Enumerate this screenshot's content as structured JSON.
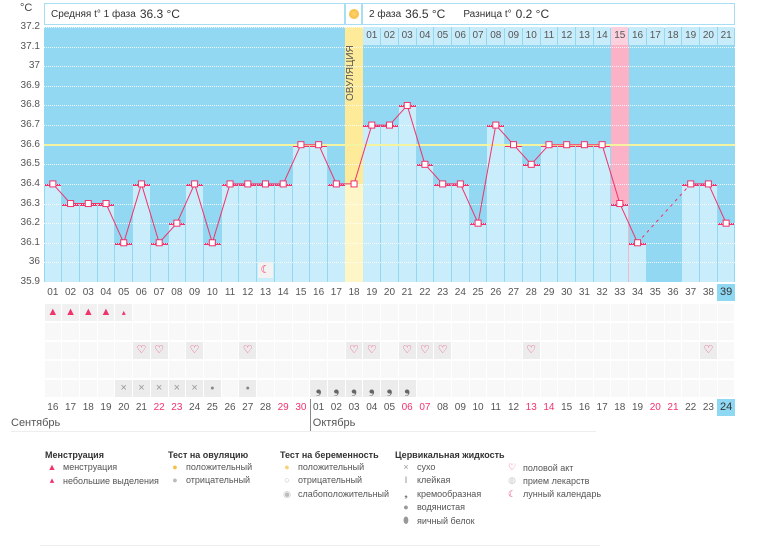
{
  "header": {
    "unit_label": "°C",
    "phase1_label": "Средняя t° 1 фаза",
    "phase1_value": "36.3 °C",
    "phase2_label": "2 фаза",
    "phase2_value": "36.5 °C",
    "diff_label": "Разница t°",
    "diff_value": "0.2 °C",
    "ovulation_label": "ОВУЛЯЦИЯ"
  },
  "colors": {
    "bg_dark": "#92d8f2",
    "bar_light": "#caedfb",
    "line": "#f0336b",
    "ovulation": "#fdeb9a",
    "highlight_pink": "#fbb1c6",
    "coverline": "#f3f3a0",
    "today": "#8fd8f4"
  },
  "chart_data": {
    "type": "line",
    "ylim": [
      35.9,
      37.2
    ],
    "yticks": [
      "37.2",
      "37.1",
      "37",
      "36.9",
      "36.8",
      "36.7",
      "36.6",
      "36.5",
      "36.4",
      "36.3",
      "36.2",
      "36.1",
      "36",
      "35.9"
    ],
    "coverline": 36.6,
    "cycle_days": [
      "01",
      "02",
      "03",
      "04",
      "05",
      "06",
      "07",
      "08",
      "09",
      "10",
      "11",
      "12",
      "13",
      "14",
      "15",
      "16",
      "17",
      "18",
      "19",
      "20",
      "21",
      "22",
      "23",
      "24",
      "25",
      "26",
      "27",
      "28",
      "29",
      "30",
      "31",
      "32",
      "33",
      "34",
      "35",
      "36",
      "37",
      "38",
      "39"
    ],
    "temperatures": [
      36.4,
      36.3,
      36.3,
      36.3,
      36.1,
      36.4,
      36.1,
      36.2,
      36.4,
      36.1,
      36.4,
      36.4,
      36.4,
      36.4,
      36.6,
      36.6,
      36.4,
      36.4,
      36.7,
      36.7,
      36.8,
      36.5,
      36.4,
      36.4,
      36.2,
      36.7,
      36.6,
      36.5,
      36.6,
      36.6,
      36.6,
      36.6,
      36.3,
      36.1,
      null,
      null,
      36.4,
      36.4,
      36.2
    ],
    "ovulation_day": 18,
    "highlight_day": 33,
    "phase2_days": [
      "01",
      "02",
      "03",
      "04",
      "05",
      "06",
      "07",
      "08",
      "09",
      "10",
      "11",
      "12",
      "13",
      "14",
      "15",
      "16",
      "17",
      "18",
      "19",
      "20",
      "21"
    ],
    "lunar_day": 13,
    "current_day": 39
  },
  "rows": {
    "menstruation": {
      "1": "heavy",
      "2": "heavy",
      "3": "heavy",
      "4": "heavy",
      "5": "light"
    },
    "intercourse_days": [
      6,
      7,
      9,
      12,
      18,
      19,
      21,
      22,
      23,
      28,
      38
    ],
    "cervical": {
      "5": "dry",
      "6": "dry",
      "7": "dry",
      "8": "dry",
      "9": "dry",
      "10": "watery",
      "12": "watery",
      "16": "creamy",
      "17": "creamy",
      "18": "creamy",
      "19": "creamy",
      "20": "creamy",
      "21": "creamy"
    }
  },
  "calendar": {
    "dates": [
      "16",
      "17",
      "18",
      "19",
      "20",
      "21",
      "22",
      "23",
      "24",
      "25",
      "26",
      "27",
      "28",
      "29",
      "30",
      "01",
      "02",
      "03",
      "04",
      "05",
      "06",
      "07",
      "08",
      "09",
      "10",
      "11",
      "12",
      "13",
      "14",
      "15",
      "16",
      "17",
      "18",
      "19",
      "20",
      "21",
      "22",
      "23",
      "24"
    ],
    "weekend_indexes": [
      6,
      7,
      13,
      14,
      20,
      21,
      27,
      28,
      34,
      35
    ],
    "months": [
      "Сентябрь",
      "Октябрь"
    ]
  },
  "legend": {
    "groups": [
      {
        "title": "Менструация",
        "items": [
          {
            "icon": "menstruation-icon",
            "label": "менструация"
          },
          {
            "icon": "light-spotting-icon",
            "label": "небольшие выделения"
          }
        ]
      },
      {
        "title": "Тест на овуляцию",
        "items": [
          {
            "icon": "ovulation-positive-icon",
            "label": "положительный"
          },
          {
            "icon": "ovulation-negative-icon",
            "label": "отрицательный"
          }
        ]
      },
      {
        "title": "Тест на беременность",
        "items": [
          {
            "icon": "pregnancy-positive-icon",
            "label": "положительный"
          },
          {
            "icon": "pregnancy-negative-icon",
            "label": "отрицательный"
          },
          {
            "icon": "pregnancy-weak-icon",
            "label": "слабоположительный"
          }
        ]
      },
      {
        "title": "Цервикальная жидкость",
        "items": [
          {
            "icon": "dry-icon",
            "label": "сухо"
          },
          {
            "icon": "sticky-icon",
            "label": "клейкая"
          },
          {
            "icon": "creamy-icon",
            "label": "кремообразная"
          },
          {
            "icon": "watery-icon",
            "label": "водянистая"
          },
          {
            "icon": "egg-white-icon",
            "label": "яичный белок"
          }
        ]
      },
      {
        "title": "",
        "items": [
          {
            "icon": "heart-icon",
            "label": "половой акт"
          },
          {
            "icon": "pill-icon",
            "label": "прием лекарств"
          },
          {
            "icon": "moon-icon",
            "label": "лунный календарь"
          }
        ]
      }
    ]
  }
}
